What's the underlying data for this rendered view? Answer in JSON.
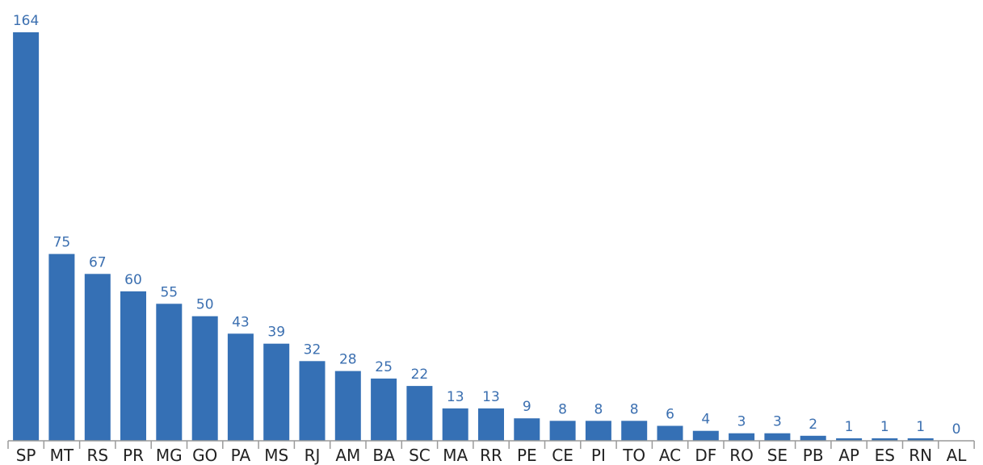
{
  "chart_data": {
    "type": "bar",
    "categories": [
      "SP",
      "MT",
      "RS",
      "PR",
      "MG",
      "GO",
      "PA",
      "MS",
      "RJ",
      "AM",
      "BA",
      "SC",
      "MA",
      "RR",
      "PE",
      "CE",
      "PI",
      "TO",
      "AC",
      "DF",
      "RO",
      "SE",
      "PB",
      "AP",
      "ES",
      "RN",
      "AL"
    ],
    "values": [
      164,
      75,
      67,
      60,
      55,
      50,
      43,
      39,
      32,
      28,
      25,
      22,
      13,
      13,
      9,
      8,
      8,
      8,
      6,
      4,
      3,
      3,
      2,
      1,
      1,
      1,
      0
    ],
    "data_labels": [
      "164",
      "75",
      "67",
      "60",
      "55",
      "50",
      "43",
      "39",
      "32",
      "28",
      "25",
      "22",
      "13",
      "13",
      "9",
      "8",
      "8",
      "8",
      "6",
      "4",
      "3",
      "3",
      "2",
      "1",
      "1",
      "1",
      "0"
    ],
    "ylim": [
      0,
      164
    ],
    "grid": false,
    "legend": "none",
    "bar_color": "#3570b5",
    "label_color": "#3b6fb0"
  }
}
